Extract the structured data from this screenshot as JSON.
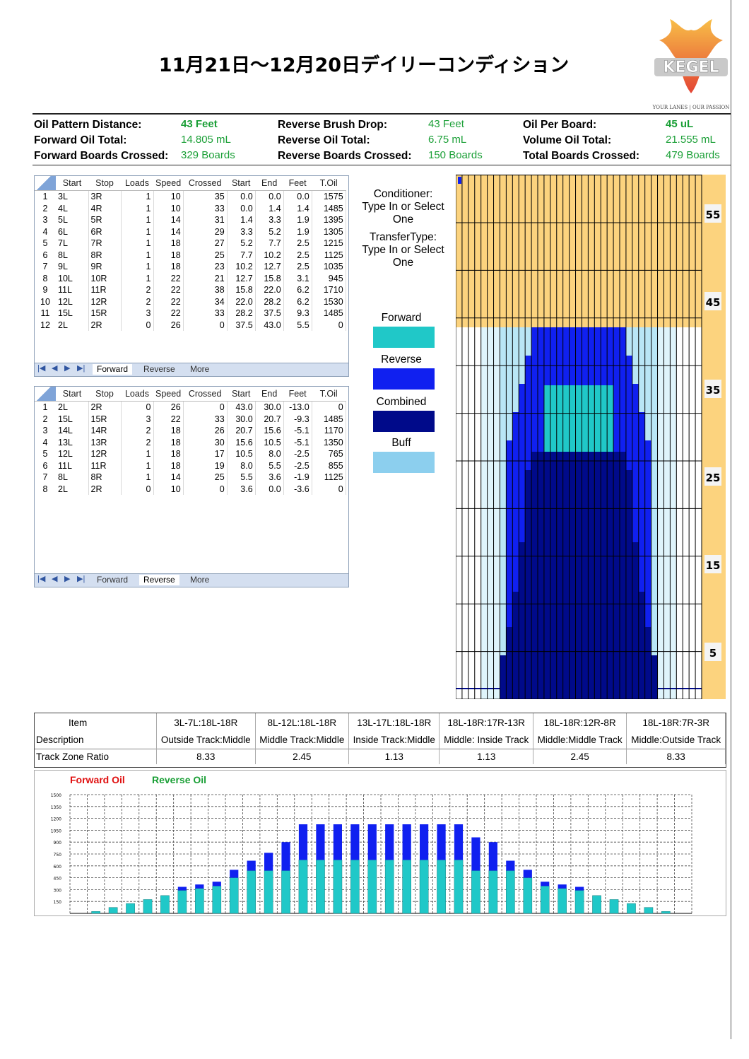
{
  "title": "11月21日～12月20日デイリーコンディション",
  "logo": {
    "text": "KEGEL",
    "tagline": "Your Lanes | Our Passion"
  },
  "info": [
    {
      "label": "Oil Pattern Distance:",
      "value": "43 Feet",
      "bold": true
    },
    {
      "label": "Forward Oil Total:",
      "value": "14.805 mL",
      "bold": false
    },
    {
      "label": "Forward Boards Crossed:",
      "value": "329 Boards",
      "bold": false
    },
    {
      "label": "Reverse Brush Drop:",
      "value": "43 Feet",
      "bold": false
    },
    {
      "label": "Reverse Oil Total:",
      "value": "6.75 mL",
      "bold": false
    },
    {
      "label": "Reverse Boards Crossed:",
      "value": "150 Boards",
      "bold": false
    },
    {
      "label": "Oil Per Board:",
      "value": "45 uL",
      "bold": true
    },
    {
      "label": "Volume Oil Total:",
      "value": "21.555 mL",
      "bold": false
    },
    {
      "label": "Total Boards Crossed:",
      "value": "479 Boards",
      "bold": false
    }
  ],
  "headers": [
    "Start",
    "Stop",
    "Loads",
    "Speed",
    "Crossed",
    "Start",
    "End",
    "Feet",
    "T.Oil"
  ],
  "forward_rows": [
    [
      "1",
      "3L",
      "3R",
      "1",
      "10",
      "35",
      "0.0",
      "0.0",
      "0.0",
      "1575"
    ],
    [
      "2",
      "4L",
      "4R",
      "1",
      "10",
      "33",
      "0.0",
      "1.4",
      "1.4",
      "1485"
    ],
    [
      "3",
      "5L",
      "5R",
      "1",
      "14",
      "31",
      "1.4",
      "3.3",
      "1.9",
      "1395"
    ],
    [
      "4",
      "6L",
      "6R",
      "1",
      "14",
      "29",
      "3.3",
      "5.2",
      "1.9",
      "1305"
    ],
    [
      "5",
      "7L",
      "7R",
      "1",
      "18",
      "27",
      "5.2",
      "7.7",
      "2.5",
      "1215"
    ],
    [
      "6",
      "8L",
      "8R",
      "1",
      "18",
      "25",
      "7.7",
      "10.2",
      "2.5",
      "1125"
    ],
    [
      "7",
      "9L",
      "9R",
      "1",
      "18",
      "23",
      "10.2",
      "12.7",
      "2.5",
      "1035"
    ],
    [
      "8",
      "10L",
      "10R",
      "1",
      "22",
      "21",
      "12.7",
      "15.8",
      "3.1",
      "945"
    ],
    [
      "9",
      "11L",
      "11R",
      "2",
      "22",
      "38",
      "15.8",
      "22.0",
      "6.2",
      "1710"
    ],
    [
      "10",
      "12L",
      "12R",
      "2",
      "22",
      "34",
      "22.0",
      "28.2",
      "6.2",
      "1530"
    ],
    [
      "11",
      "15L",
      "15R",
      "3",
      "22",
      "33",
      "28.2",
      "37.5",
      "9.3",
      "1485"
    ],
    [
      "12",
      "2L",
      "2R",
      "0",
      "26",
      "0",
      "37.5",
      "43.0",
      "5.5",
      "0"
    ]
  ],
  "reverse_rows": [
    [
      "1",
      "2L",
      "2R",
      "0",
      "26",
      "0",
      "43.0",
      "30.0",
      "-13.0",
      "0"
    ],
    [
      "2",
      "15L",
      "15R",
      "3",
      "22",
      "33",
      "30.0",
      "20.7",
      "-9.3",
      "1485"
    ],
    [
      "3",
      "14L",
      "14R",
      "2",
      "18",
      "26",
      "20.7",
      "15.6",
      "-5.1",
      "1170"
    ],
    [
      "4",
      "13L",
      "13R",
      "2",
      "18",
      "30",
      "15.6",
      "10.5",
      "-5.1",
      "1350"
    ],
    [
      "5",
      "12L",
      "12R",
      "1",
      "18",
      "17",
      "10.5",
      "8.0",
      "-2.5",
      "765"
    ],
    [
      "6",
      "11L",
      "11R",
      "1",
      "18",
      "19",
      "8.0",
      "5.5",
      "-2.5",
      "855"
    ],
    [
      "7",
      "8L",
      "8R",
      "1",
      "14",
      "25",
      "5.5",
      "3.6",
      "-1.9",
      "1125"
    ],
    [
      "8",
      "2L",
      "2R",
      "0",
      "10",
      "0",
      "3.6",
      "0.0",
      "-3.6",
      "0"
    ]
  ],
  "tabs": {
    "forward": "Forward",
    "reverse": "Reverse",
    "more": "More"
  },
  "legend": {
    "conditioner": "Conditioner:",
    "conditioner_hint": "Type In or Select One",
    "transfer": "TransferType:",
    "transfer_hint": "Type In or Select One",
    "forward": "Forward",
    "reverse": "Reverse",
    "combined": "Combined",
    "buff": "Buff"
  },
  "colors": {
    "forward": "#20c8c8",
    "reverse": "#1020f0",
    "combined": "#000a8a",
    "buff": "#8ccfee",
    "lane_bg": "#fcd37e",
    "green": "#1a9f36"
  },
  "lane_scale": [
    "55",
    "45",
    "35",
    "25",
    "15",
    "5"
  ],
  "zone": {
    "item_label": "Item",
    "desc_label": "Description",
    "ratio_label": "Track Zone Ratio",
    "items": [
      "3L-7L:18L-18R",
      "8L-12L:18L-18R",
      "13L-17L:18L-18R",
      "18L-18R:17R-13R",
      "18L-18R:12R-8R",
      "18L-18R:7R-3R"
    ],
    "descriptions": [
      "Outside Track:Middle",
      "Middle Track:Middle",
      "Inside Track:Middle",
      "Middle: Inside Track",
      "Middle:Middle Track",
      "Middle:Outside Track"
    ],
    "ratios": [
      "8.33",
      "2.45",
      "1.13",
      "1.13",
      "2.45",
      "8.33"
    ]
  },
  "chart_data": {
    "type": "bar",
    "title": "",
    "series": [
      {
        "name": "Forward Oil",
        "values": [
          25,
          75,
          125,
          175,
          225,
          290,
          315,
          345,
          450,
          540,
          540,
          540,
          675,
          675,
          675,
          675,
          675,
          675,
          675,
          675,
          675,
          675,
          540,
          540,
          540,
          450,
          345,
          315,
          290,
          225,
          175,
          125,
          75,
          25
        ]
      },
      {
        "name": "Reverse Oil",
        "values": [
          0,
          0,
          0,
          0,
          0,
          45,
          50,
          55,
          100,
          125,
          225,
          360,
          450,
          450,
          450,
          450,
          450,
          450,
          450,
          450,
          450,
          450,
          420,
          360,
          125,
          100,
          55,
          50,
          45,
          0,
          0,
          0,
          0,
          0
        ]
      }
    ],
    "stacked": true,
    "ylim": [
      0,
      1500
    ],
    "yticks": [
      "1500",
      "1350",
      "1200",
      "1050",
      "900",
      "750",
      "600",
      "450",
      "300",
      "150"
    ],
    "legend_position": "top-left"
  }
}
